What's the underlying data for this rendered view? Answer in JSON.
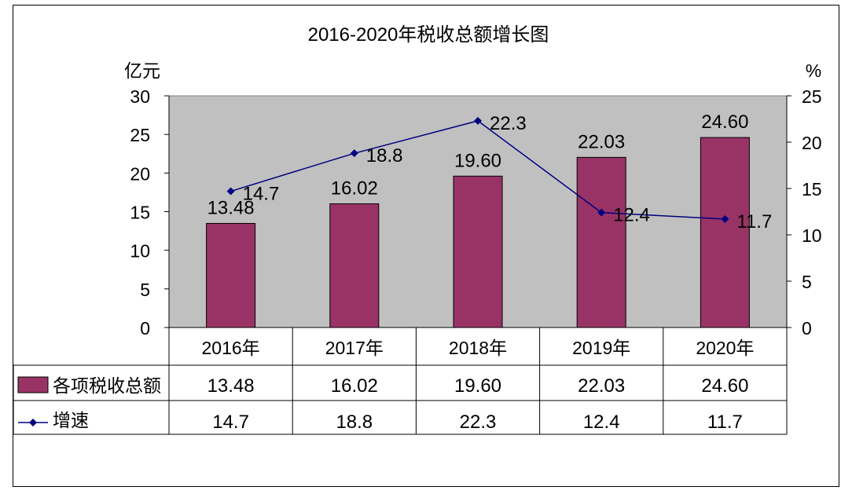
{
  "chart_data": {
    "type": "bar",
    "title": "2016-2020年税收总额增长图",
    "y_left_unit": "亿元",
    "y_right_unit": "%",
    "ylim_left": [
      0,
      30
    ],
    "yticks_left": [
      "0",
      "5",
      "10",
      "15",
      "20",
      "25",
      "30"
    ],
    "ylim_right": [
      0,
      25
    ],
    "yticks_right": [
      "0",
      "5",
      "10",
      "15",
      "20",
      "25"
    ],
    "categories": [
      "2016年",
      "2017年",
      "2018年",
      "2019年",
      "2020年"
    ],
    "series": [
      {
        "name": "各项税收总额",
        "type": "bar",
        "axis": "left",
        "color": "#993366",
        "values": [
          13.48,
          16.02,
          19.6,
          22.03,
          24.6
        ],
        "labels": [
          "13.48",
          "16.02",
          "19.60",
          "22.03",
          "24.60"
        ]
      },
      {
        "name": "增速",
        "type": "line",
        "axis": "right",
        "color": "#000080",
        "values": [
          14.7,
          18.8,
          22.3,
          12.4,
          11.7
        ],
        "labels": [
          "14.7",
          "18.8",
          "22.3",
          "12.4",
          "11.7"
        ]
      }
    ],
    "plot_background": "#c0c0c0",
    "grid": false,
    "legend": "data-table below chart"
  }
}
